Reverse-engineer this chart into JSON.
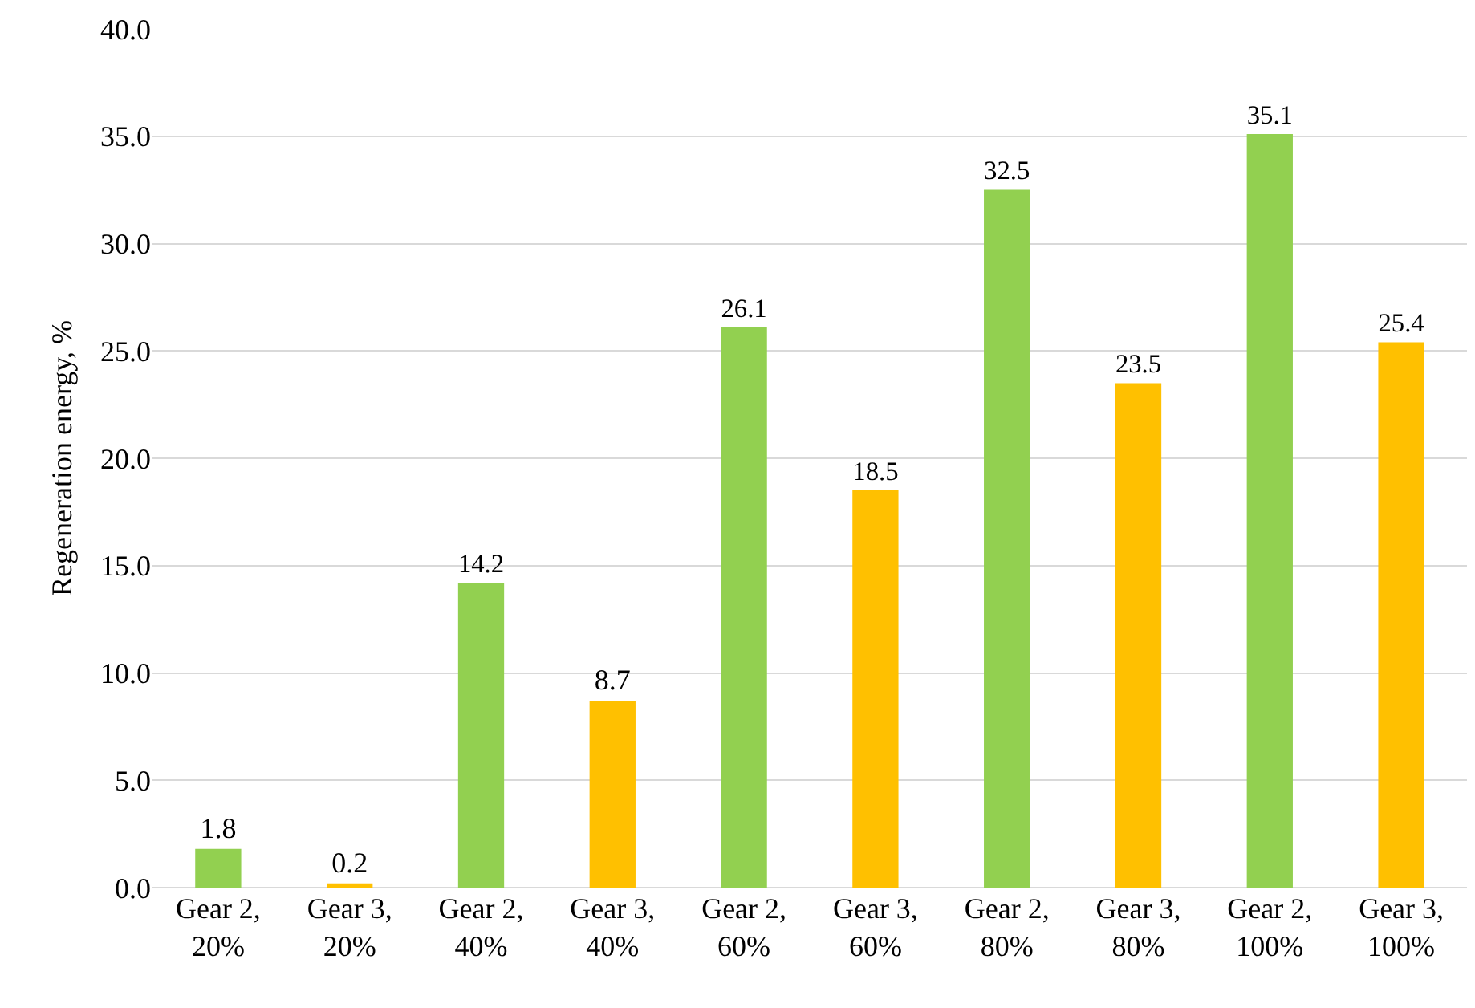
{
  "chart_data": {
    "type": "bar",
    "ylabel": "Regeneration energy, %",
    "categories": [
      "Gear 2, 20%",
      "Gear 3, 20%",
      "Gear 2, 40%",
      "Gear 3, 40%",
      "Gear 2, 60%",
      "Gear 3, 60%",
      "Gear 2, 80%",
      "Gear 3, 80%",
      "Gear 2, 100%",
      "Gear 3, 100%"
    ],
    "values": [
      1.8,
      0.2,
      14.2,
      8.7,
      26.1,
      18.5,
      32.5,
      23.5,
      35.1,
      25.4
    ],
    "colors": [
      "#92d050",
      "#ffc000",
      "#92d050",
      "#ffc000",
      "#92d050",
      "#ffc000",
      "#92d050",
      "#ffc000",
      "#92d050",
      "#ffc000"
    ],
    "ylim": [
      0,
      40
    ],
    "yticks": [
      {
        "value": 0,
        "label": "0.0"
      },
      {
        "value": 5,
        "label": "5.0"
      },
      {
        "value": 10,
        "label": "10.0"
      },
      {
        "value": 15,
        "label": "15.0"
      },
      {
        "value": 20,
        "label": "20.0"
      },
      {
        "value": 25,
        "label": "25.0"
      },
      {
        "value": 30,
        "label": "30.0"
      },
      {
        "value": 35,
        "label": "35.0"
      },
      {
        "value": 40,
        "label": "40.0"
      }
    ],
    "grid": "y",
    "data_labels": true
  }
}
